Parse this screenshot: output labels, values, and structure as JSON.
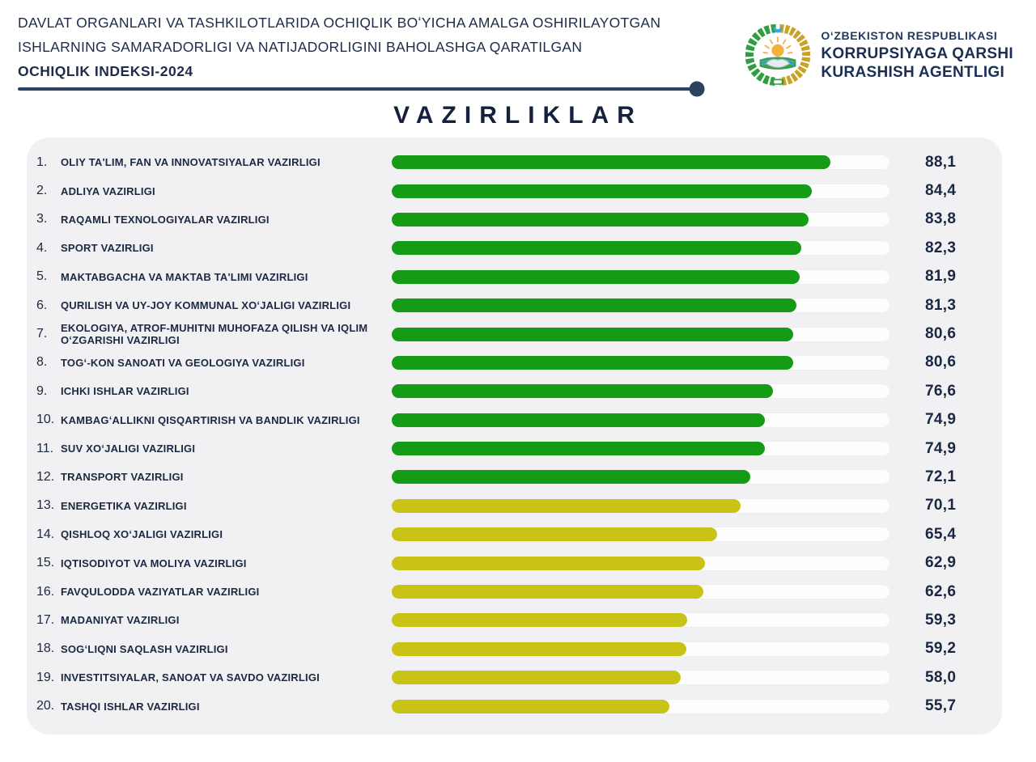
{
  "header": {
    "line1": "DAVLAT ORGANLARI VA TASHKILOTLARIDA OCHIQLIK BOʻYICHA AMALGA OSHIRILAYOTGAN",
    "line2": "ISHLARNING SAMARADORLIGI VA NATIJADORLIGINI BAHOLASHGA QARATILGAN",
    "line3": "OCHIQLIK INDEKSI-2024",
    "logo_icon": "uzbekistan-state-emblem",
    "agency_line1": "OʻZBEKISTON RESPUBLIKASI",
    "agency_line2": "KORRUPSIYAGA QARSHI",
    "agency_line3": "KURASHISH AGENTLIGI"
  },
  "title": "VAZIRLIKLAR",
  "colors": {
    "green": "#169b16",
    "yellow": "#c9c318",
    "navy": "#1b2942",
    "rule": "#2e4160",
    "panel_bg": "#f1f0f3",
    "track_bg": "#fdfdfe"
  },
  "chart_data": {
    "type": "bar",
    "orientation": "horizontal",
    "title": "VAZIRLIKLAR",
    "xlim": [
      0,
      100
    ],
    "legend": null,
    "grid": false,
    "ranks": [
      "1.",
      "2.",
      "3.",
      "4.",
      "5.",
      "6.",
      "7.",
      "8.",
      "9.",
      "10.",
      "11.",
      "12.",
      "13.",
      "14.",
      "15.",
      "16.",
      "17.",
      "18.",
      "19.",
      "20."
    ],
    "categories": [
      "OLIY TA'LIM, FAN VA INNOVATSIYALAR VAZIRLIGI",
      "ADLIYA VAZIRLIGI",
      "RAQAMLI TEXNOLOGIYALAR VAZIRLIGI",
      "SPORT VAZIRLIGI",
      "MAKTABGACHA VA MAKTAB TA'LIMI VAZIRLIGI",
      "QURILISH VA UY-JOY KOMMUNAL XOʻJALIGI VAZIRLIGI",
      "EKOLOGIYA, ATROF-MUHITNI MUHOFAZA QILISH VA IQLIM OʻZGARISHI VAZIRLIGI",
      "TOGʻ-KON SANOATI VA GEOLOGIYA VAZIRLIGI",
      "ICHKI ISHLAR VAZIRLIGI",
      "KAMBAGʻALLIKNI QISQARTIRISH VA BANDLIK VAZIRLIGI",
      "SUV XOʻJALIGI VAZIRLIGI",
      "TRANSPORT VAZIRLIGI",
      "ENERGETIKA VAZIRLIGI",
      "QISHLOQ XOʻJALIGI VAZIRLIGI",
      "IQTISODIYOT VA MOLIYA VAZIRLIGI",
      "FAVQULODDA VAZIYATLAR VAZIRLIGI",
      "MADANIYAT VAZIRLIGI",
      "SOGʻLIQNI SAQLASH VAZIRLIGI",
      "INVESTITSIYALAR, SANOAT VA SAVDO VAZIRLIGI",
      "TASHQI ISHLAR VAZIRLIGI"
    ],
    "values": [
      88.1,
      84.4,
      83.8,
      82.3,
      81.9,
      81.3,
      80.6,
      80.6,
      76.6,
      74.9,
      74.9,
      72.1,
      70.1,
      65.4,
      62.9,
      62.6,
      59.3,
      59.2,
      58.0,
      55.7
    ],
    "value_labels": [
      "88,1",
      "84,4",
      "83,8",
      "82,3",
      "81,9",
      "81,3",
      "80,6",
      "80,6",
      "76,6",
      "74,9",
      "74,9",
      "72,1",
      "70,1",
      "65,4",
      "62,9",
      "62,6",
      "59,3",
      "59,2",
      "58,0",
      "55,7"
    ],
    "bar_colors": [
      "green",
      "green",
      "green",
      "green",
      "green",
      "green",
      "green",
      "green",
      "green",
      "green",
      "green",
      "green",
      "yellow",
      "yellow",
      "yellow",
      "yellow",
      "yellow",
      "yellow",
      "yellow",
      "yellow"
    ]
  }
}
